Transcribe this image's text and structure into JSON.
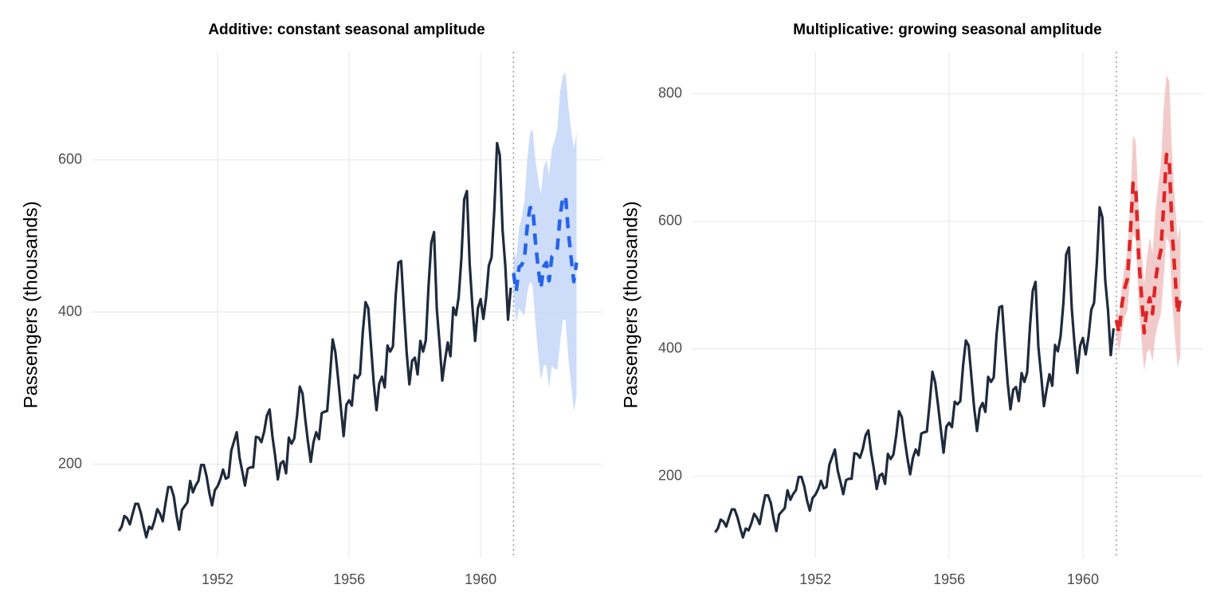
{
  "chart_data": [
    {
      "type": "line",
      "title": "Additive: constant seasonal amplitude",
      "y_label": "Passengers (thousands)",
      "xlim": [
        1948.17,
        1963.68
      ],
      "ylim": [
        77,
        742
      ],
      "xticks": [
        1952,
        1956,
        1960
      ],
      "yticks": [
        200,
        400,
        600
      ],
      "grid": true,
      "forecast_start": 1961,
      "series": [
        {
          "color": "#1f2a3c",
          "style": "solid",
          "x": [
            1949,
            1949.083,
            1949.167,
            1949.25,
            1949.333,
            1949.417,
            1949.5,
            1949.583,
            1949.667,
            1949.75,
            1949.833,
            1949.917,
            1950,
            1950.083,
            1950.167,
            1950.25,
            1950.333,
            1950.417,
            1950.5,
            1950.583,
            1950.667,
            1950.75,
            1950.833,
            1950.917,
            1951,
            1951.083,
            1951.167,
            1951.25,
            1951.333,
            1951.417,
            1951.5,
            1951.583,
            1951.667,
            1951.75,
            1951.833,
            1951.917,
            1952,
            1952.083,
            1952.167,
            1952.25,
            1952.333,
            1952.417,
            1952.5,
            1952.583,
            1952.667,
            1952.75,
            1952.833,
            1952.917,
            1953,
            1953.083,
            1953.167,
            1953.25,
            1953.333,
            1953.417,
            1953.5,
            1953.583,
            1953.667,
            1953.75,
            1953.833,
            1953.917,
            1954,
            1954.083,
            1954.167,
            1954.25,
            1954.333,
            1954.417,
            1954.5,
            1954.583,
            1954.667,
            1954.75,
            1954.833,
            1954.917,
            1955,
            1955.083,
            1955.167,
            1955.25,
            1955.333,
            1955.417,
            1955.5,
            1955.583,
            1955.667,
            1955.75,
            1955.833,
            1955.917,
            1956,
            1956.083,
            1956.167,
            1956.25,
            1956.333,
            1956.417,
            1956.5,
            1956.583,
            1956.667,
            1956.75,
            1956.833,
            1956.917,
            1957,
            1957.083,
            1957.167,
            1957.25,
            1957.333,
            1957.417,
            1957.5,
            1957.583,
            1957.667,
            1957.75,
            1957.833,
            1957.917,
            1958,
            1958.083,
            1958.167,
            1958.25,
            1958.333,
            1958.417,
            1958.5,
            1958.583,
            1958.667,
            1958.75,
            1958.833,
            1958.917,
            1959,
            1959.083,
            1959.167,
            1959.25,
            1959.333,
            1959.417,
            1959.5,
            1959.583,
            1959.667,
            1959.75,
            1959.833,
            1959.917,
            1960,
            1960.083,
            1960.167,
            1960.25,
            1960.333,
            1960.417,
            1960.5,
            1960.583,
            1960.667,
            1960.75,
            1960.833,
            1960.917
          ],
          "values": [
            112,
            118,
            132,
            129,
            121,
            135,
            148,
            148,
            136,
            119,
            104,
            118,
            115,
            126,
            141,
            135,
            125,
            149,
            170,
            170,
            158,
            133,
            114,
            140,
            145,
            150,
            178,
            163,
            172,
            178,
            199,
            199,
            184,
            162,
            146,
            166,
            171,
            180,
            193,
            181,
            183,
            218,
            230,
            242,
            209,
            191,
            172,
            194,
            196,
            196,
            236,
            235,
            229,
            243,
            264,
            272,
            237,
            211,
            180,
            201,
            204,
            188,
            235,
            227,
            234,
            264,
            302,
            293,
            259,
            229,
            203,
            229,
            242,
            233,
            267,
            269,
            270,
            315,
            364,
            347,
            312,
            274,
            237,
            278,
            284,
            277,
            317,
            313,
            318,
            374,
            413,
            405,
            355,
            306,
            271,
            306,
            315,
            301,
            356,
            348,
            355,
            422,
            465,
            467,
            404,
            347,
            305,
            336,
            340,
            318,
            362,
            348,
            363,
            435,
            491,
            505,
            404,
            359,
            310,
            337,
            360,
            342,
            406,
            396,
            420,
            472,
            548,
            559,
            463,
            407,
            362,
            405,
            417,
            391,
            419,
            461,
            472,
            535,
            622,
            606,
            508,
            461,
            390,
            432
          ]
        },
        {
          "color": "#2563eb",
          "style": "dashed",
          "band_color": "#c6d8f8",
          "x": [
            1961,
            1961.083,
            1961.167,
            1961.25,
            1961.333,
            1961.417,
            1961.5,
            1961.583,
            1961.667,
            1961.75,
            1961.833,
            1961.917,
            1962,
            1962.083,
            1962.167,
            1962.25,
            1962.333,
            1962.417,
            1962.5,
            1962.583,
            1962.667,
            1962.75,
            1962.833,
            1962.917
          ],
          "values": [
            451,
            427,
            459,
            462,
            470,
            512,
            537,
            538,
            492,
            458,
            431,
            460,
            465,
            441,
            473,
            476,
            484,
            526,
            551,
            552,
            506,
            472,
            440,
            465
          ],
          "lower": [
            420,
            385,
            405,
            400,
            395,
            425,
            440,
            435,
            385,
            345,
            310,
            330,
            330,
            300,
            330,
            325,
            325,
            360,
            390,
            390,
            340,
            305,
            270,
            290
          ],
          "upper": [
            480,
            470,
            510,
            525,
            545,
            600,
            635,
            640,
            600,
            575,
            555,
            590,
            600,
            580,
            615,
            625,
            640,
            690,
            710,
            715,
            670,
            640,
            615,
            635
          ]
        }
      ]
    },
    {
      "type": "line",
      "title": "Multiplicative: growing seasonal amplitude",
      "y_label": "Passengers (thousands)",
      "xlim": [
        1948.3,
        1963.6
      ],
      "ylim": [
        72,
        866
      ],
      "xticks": [
        1952,
        1956,
        1960
      ],
      "yticks": [
        200,
        400,
        600,
        800
      ],
      "grid": true,
      "forecast_start": 1961,
      "series": [
        {
          "color": "#1f2a3c",
          "style": "solid",
          "x": [
            1949,
            1949.083,
            1949.167,
            1949.25,
            1949.333,
            1949.417,
            1949.5,
            1949.583,
            1949.667,
            1949.75,
            1949.833,
            1949.917,
            1950,
            1950.083,
            1950.167,
            1950.25,
            1950.333,
            1950.417,
            1950.5,
            1950.583,
            1950.667,
            1950.75,
            1950.833,
            1950.917,
            1951,
            1951.083,
            1951.167,
            1951.25,
            1951.333,
            1951.417,
            1951.5,
            1951.583,
            1951.667,
            1951.75,
            1951.833,
            1951.917,
            1952,
            1952.083,
            1952.167,
            1952.25,
            1952.333,
            1952.417,
            1952.5,
            1952.583,
            1952.667,
            1952.75,
            1952.833,
            1952.917,
            1953,
            1953.083,
            1953.167,
            1953.25,
            1953.333,
            1953.417,
            1953.5,
            1953.583,
            1953.667,
            1953.75,
            1953.833,
            1953.917,
            1954,
            1954.083,
            1954.167,
            1954.25,
            1954.333,
            1954.417,
            1954.5,
            1954.583,
            1954.667,
            1954.75,
            1954.833,
            1954.917,
            1955,
            1955.083,
            1955.167,
            1955.25,
            1955.333,
            1955.417,
            1955.5,
            1955.583,
            1955.667,
            1955.75,
            1955.833,
            1955.917,
            1956,
            1956.083,
            1956.167,
            1956.25,
            1956.333,
            1956.417,
            1956.5,
            1956.583,
            1956.667,
            1956.75,
            1956.833,
            1956.917,
            1957,
            1957.083,
            1957.167,
            1957.25,
            1957.333,
            1957.417,
            1957.5,
            1957.583,
            1957.667,
            1957.75,
            1957.833,
            1957.917,
            1958,
            1958.083,
            1958.167,
            1958.25,
            1958.333,
            1958.417,
            1958.5,
            1958.583,
            1958.667,
            1958.75,
            1958.833,
            1958.917,
            1959,
            1959.083,
            1959.167,
            1959.25,
            1959.333,
            1959.417,
            1959.5,
            1959.583,
            1959.667,
            1959.75,
            1959.833,
            1959.917,
            1960,
            1960.083,
            1960.167,
            1960.25,
            1960.333,
            1960.417,
            1960.5,
            1960.583,
            1960.667,
            1960.75,
            1960.833,
            1960.917
          ],
          "values": [
            112,
            118,
            132,
            129,
            121,
            135,
            148,
            148,
            136,
            119,
            104,
            118,
            115,
            126,
            141,
            135,
            125,
            149,
            170,
            170,
            158,
            133,
            114,
            140,
            145,
            150,
            178,
            163,
            172,
            178,
            199,
            199,
            184,
            162,
            146,
            166,
            171,
            180,
            193,
            181,
            183,
            218,
            230,
            242,
            209,
            191,
            172,
            194,
            196,
            196,
            236,
            235,
            229,
            243,
            264,
            272,
            237,
            211,
            180,
            201,
            204,
            188,
            235,
            227,
            234,
            264,
            302,
            293,
            259,
            229,
            203,
            229,
            242,
            233,
            267,
            269,
            270,
            315,
            364,
            347,
            312,
            274,
            237,
            278,
            284,
            277,
            317,
            313,
            318,
            374,
            413,
            405,
            355,
            306,
            271,
            306,
            315,
            301,
            356,
            348,
            355,
            422,
            465,
            467,
            404,
            347,
            305,
            336,
            340,
            318,
            362,
            348,
            363,
            435,
            491,
            505,
            404,
            359,
            310,
            337,
            360,
            342,
            406,
            396,
            420,
            472,
            548,
            559,
            463,
            407,
            362,
            405,
            417,
            391,
            419,
            461,
            472,
            535,
            622,
            606,
            508,
            461,
            390,
            432
          ]
        },
        {
          "color": "#dc2626",
          "style": "dashed",
          "band_color": "#f2c4c4",
          "x": [
            1961,
            1961.083,
            1961.167,
            1961.25,
            1961.333,
            1961.417,
            1961.5,
            1961.583,
            1961.667,
            1961.75,
            1961.833,
            1961.917,
            1962,
            1962.083,
            1962.167,
            1962.25,
            1962.333,
            1962.417,
            1962.5,
            1962.583,
            1962.667,
            1962.75,
            1962.833,
            1962.917
          ],
          "values": [
            445,
            425,
            470,
            495,
            510,
            580,
            660,
            650,
            545,
            485,
            425,
            465,
            480,
            455,
            505,
            535,
            555,
            625,
            705,
            695,
            585,
            520,
            455,
            480
          ],
          "lower": [
            420,
            395,
            425,
            450,
            460,
            515,
            580,
            570,
            470,
            415,
            365,
            395,
            400,
            380,
            420,
            440,
            455,
            510,
            575,
            565,
            475,
            420,
            370,
            390
          ],
          "upper": [
            465,
            450,
            500,
            530,
            555,
            635,
            735,
            725,
            620,
            560,
            500,
            545,
            575,
            550,
            615,
            655,
            690,
            780,
            830,
            820,
            705,
            635,
            570,
            595
          ]
        }
      ]
    }
  ]
}
